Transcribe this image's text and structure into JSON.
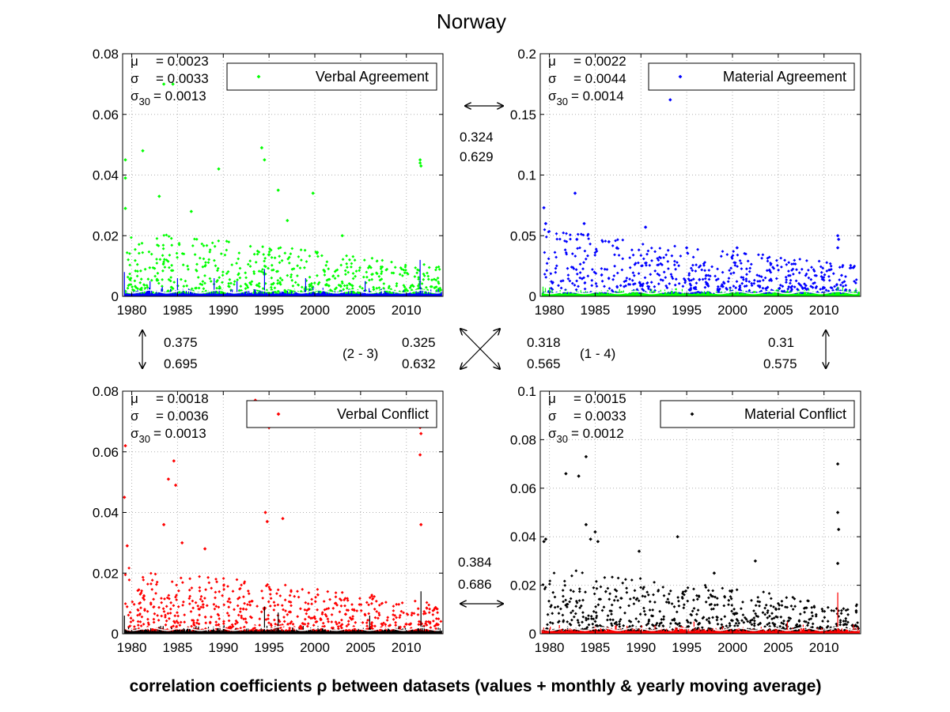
{
  "title": "Norway",
  "footer": "correlation coefficients ρ between datasets (values + monthly & yearly moving average)",
  "colors": {
    "green": "#00ff00",
    "blue": "#0000ff",
    "red": "#ff0000",
    "black": "#000000",
    "white_line": "#ffffff",
    "grid": "#b0b0b0"
  },
  "chart_data": [
    {
      "type": "scatter",
      "panel": "top-left",
      "series": [
        {
          "name": "Verbal Agreement",
          "color": "#00ff00"
        }
      ],
      "overlay_color": "#0000ff",
      "stats": {
        "mu": "= 0.0023",
        "sigma": "= 0.0033",
        "sigma30": "= 0.0013"
      },
      "ylim": [
        0,
        0.08
      ],
      "yticks": [
        0,
        0.02,
        0.04,
        0.06,
        0.08
      ],
      "ytick_labels": [
        "0",
        "0.02",
        "0.04",
        "0.06",
        "0.08"
      ],
      "xlim": [
        1979,
        2014
      ],
      "xticks": [
        1980,
        1985,
        1990,
        1995,
        2000,
        2005,
        2010
      ],
      "xtick_labels": [
        "1980",
        "1985",
        "1990",
        "1995",
        "2000",
        "2005",
        "2010"
      ],
      "legend": "top-right",
      "grid": true,
      "highlights": [
        {
          "x": 1979.3,
          "y": 0.045
        },
        {
          "x": 1979.3,
          "y": 0.039
        },
        {
          "x": 1979.3,
          "y": 0.029
        },
        {
          "x": 1981.2,
          "y": 0.048
        },
        {
          "x": 1983.0,
          "y": 0.033
        },
        {
          "x": 1984.5,
          "y": 0.07
        },
        {
          "x": 1983.5,
          "y": 0.07
        },
        {
          "x": 1986.5,
          "y": 0.028
        },
        {
          "x": 1989.5,
          "y": 0.042
        },
        {
          "x": 1994.2,
          "y": 0.049
        },
        {
          "x": 1994.5,
          "y": 0.045
        },
        {
          "x": 1996.0,
          "y": 0.035
        },
        {
          "x": 1999.8,
          "y": 0.034
        },
        {
          "x": 1997.0,
          "y": 0.025
        },
        {
          "x": 2011.5,
          "y": 0.045
        },
        {
          "x": 2011.5,
          "y": 0.044
        },
        {
          "x": 2011.6,
          "y": 0.043
        },
        {
          "x": 2003.0,
          "y": 0.02
        }
      ],
      "spikes": [
        {
          "x": 1979.2,
          "y": 0.008
        },
        {
          "x": 1982.0,
          "y": 0.005
        },
        {
          "x": 1985.0,
          "y": 0.006
        },
        {
          "x": 1989.0,
          "y": 0.006
        },
        {
          "x": 1991.5,
          "y": 0.005
        },
        {
          "x": 1994.5,
          "y": 0.009
        },
        {
          "x": 1999.0,
          "y": 0.006
        },
        {
          "x": 2005.5,
          "y": 0.005
        },
        {
          "x": 2011.5,
          "y": 0.012
        }
      ]
    },
    {
      "type": "scatter",
      "panel": "top-right",
      "series": [
        {
          "name": "Material Agreement",
          "color": "#0000ff"
        }
      ],
      "overlay_color": "#00ff00",
      "stats": {
        "mu": "= 0.0022",
        "sigma": "= 0.0044",
        "sigma30": "= 0.0014"
      },
      "ylim": [
        0,
        0.2
      ],
      "yticks": [
        0,
        0.05,
        0.1,
        0.15,
        0.2
      ],
      "ytick_labels": [
        "0",
        "0.05",
        "0.1",
        "0.15",
        "0.2"
      ],
      "xlim": [
        1979,
        2014
      ],
      "xticks": [
        1980,
        1985,
        1990,
        1995,
        2000,
        2005,
        2010
      ],
      "xtick_labels": [
        "1980",
        "1985",
        "1990",
        "1995",
        "2000",
        "2005",
        "2010"
      ],
      "legend": "top-right",
      "grid": true,
      "highlights": [
        {
          "x": 1979.4,
          "y": 0.073
        },
        {
          "x": 1979.6,
          "y": 0.06
        },
        {
          "x": 1982.8,
          "y": 0.085
        },
        {
          "x": 1983.8,
          "y": 0.06
        },
        {
          "x": 1983.0,
          "y": 0.047
        },
        {
          "x": 1986.5,
          "y": 0.045
        },
        {
          "x": 1990.5,
          "y": 0.057
        },
        {
          "x": 1993.2,
          "y": 0.162
        },
        {
          "x": 1995.0,
          "y": 0.04
        },
        {
          "x": 2000.5,
          "y": 0.04
        },
        {
          "x": 2011.5,
          "y": 0.05
        },
        {
          "x": 2011.6,
          "y": 0.047
        },
        {
          "x": 2011.5,
          "y": 0.04
        }
      ],
      "spikes": [
        {
          "x": 1979.3,
          "y": 0.008
        },
        {
          "x": 1994.5,
          "y": 0.006
        },
        {
          "x": 2011.5,
          "y": 0.008
        }
      ]
    },
    {
      "type": "scatter",
      "panel": "bottom-left",
      "series": [
        {
          "name": "Verbal Conflict",
          "color": "#ff0000"
        }
      ],
      "overlay_color": "#000000",
      "stats": {
        "mu": "= 0.0018",
        "sigma": "= 0.0036",
        "sigma30": "= 0.0013"
      },
      "ylim": [
        0,
        0.08
      ],
      "yticks": [
        0,
        0.02,
        0.04,
        0.06,
        0.08
      ],
      "ytick_labels": [
        "0",
        "0.02",
        "0.04",
        "0.06",
        "0.08"
      ],
      "xlim": [
        1979,
        2014
      ],
      "xticks": [
        1980,
        1985,
        1990,
        1995,
        2000,
        2005,
        2010
      ],
      "xtick_labels": [
        "1980",
        "1985",
        "1990",
        "1995",
        "2000",
        "2005",
        "2010"
      ],
      "legend": "top-right",
      "grid": true,
      "highlights": [
        {
          "x": 1979.3,
          "y": 0.062
        },
        {
          "x": 1979.2,
          "y": 0.045
        },
        {
          "x": 1979.5,
          "y": 0.029
        },
        {
          "x": 1984.0,
          "y": 0.051
        },
        {
          "x": 1984.6,
          "y": 0.057
        },
        {
          "x": 1984.8,
          "y": 0.049
        },
        {
          "x": 1983.5,
          "y": 0.036
        },
        {
          "x": 1985.5,
          "y": 0.03
        },
        {
          "x": 1988.0,
          "y": 0.028
        },
        {
          "x": 1994.6,
          "y": 0.04
        },
        {
          "x": 1994.8,
          "y": 0.037
        },
        {
          "x": 1996.5,
          "y": 0.038
        },
        {
          "x": 1995.0,
          "y": 0.068
        },
        {
          "x": 1993.5,
          "y": 0.077
        },
        {
          "x": 2011.5,
          "y": 0.068
        },
        {
          "x": 2011.6,
          "y": 0.066
        },
        {
          "x": 2011.5,
          "y": 0.059
        },
        {
          "x": 2011.6,
          "y": 0.036
        }
      ],
      "spikes": [
        {
          "x": 1979.2,
          "y": 0.006
        },
        {
          "x": 1994.5,
          "y": 0.009
        },
        {
          "x": 1996.0,
          "y": 0.007
        },
        {
          "x": 2006.0,
          "y": 0.006
        },
        {
          "x": 2011.6,
          "y": 0.014
        }
      ]
    },
    {
      "type": "scatter",
      "panel": "bottom-right",
      "series": [
        {
          "name": "Material Conflict",
          "color": "#000000"
        }
      ],
      "overlay_color": "#ff0000",
      "stats": {
        "mu": "= 0.0015",
        "sigma": "= 0.0033",
        "sigma30": "= 0.0012"
      },
      "ylim": [
        0,
        0.1
      ],
      "yticks": [
        0,
        0.02,
        0.04,
        0.06,
        0.08,
        0.1
      ],
      "ytick_labels": [
        "0",
        "0.02",
        "0.04",
        "0.06",
        "0.08",
        "0.1"
      ],
      "xlim": [
        1979,
        2014
      ],
      "xticks": [
        1980,
        1985,
        1990,
        1995,
        2000,
        2005,
        2010
      ],
      "xtick_labels": [
        "1980",
        "1985",
        "1990",
        "1995",
        "2000",
        "2005",
        "2010"
      ],
      "legend": "top-right",
      "grid": true,
      "highlights": [
        {
          "x": 1979.6,
          "y": 0.039
        },
        {
          "x": 1979.4,
          "y": 0.038
        },
        {
          "x": 1981.8,
          "y": 0.066
        },
        {
          "x": 1983.2,
          "y": 0.065
        },
        {
          "x": 1984.0,
          "y": 0.073
        },
        {
          "x": 1984.0,
          "y": 0.045
        },
        {
          "x": 1984.5,
          "y": 0.039
        },
        {
          "x": 1985.0,
          "y": 0.042
        },
        {
          "x": 1985.3,
          "y": 0.038
        },
        {
          "x": 1989.8,
          "y": 0.034
        },
        {
          "x": 1994.0,
          "y": 0.04
        },
        {
          "x": 1998.0,
          "y": 0.025
        },
        {
          "x": 2002.5,
          "y": 0.03
        },
        {
          "x": 2011.5,
          "y": 0.07
        },
        {
          "x": 2011.5,
          "y": 0.05
        },
        {
          "x": 2011.6,
          "y": 0.043
        },
        {
          "x": 2011.5,
          "y": 0.029
        }
      ],
      "spikes": [
        {
          "x": 1995.8,
          "y": 0.005
        },
        {
          "x": 2006.0,
          "y": 0.005
        },
        {
          "x": 2011.5,
          "y": 0.017
        }
      ]
    }
  ],
  "correlations": {
    "top": [
      "0.324",
      "0.629"
    ],
    "left": [
      "0.375",
      "0.695"
    ],
    "right": [
      "0.31",
      "0.575"
    ],
    "bottom": [
      "0.384",
      "0.686"
    ],
    "diag_23": [
      "0.325",
      "0.632"
    ],
    "diag_14": [
      "0.318",
      "0.565"
    ],
    "label_23": "(2 - 3)",
    "label_14": "(1 - 4)"
  }
}
